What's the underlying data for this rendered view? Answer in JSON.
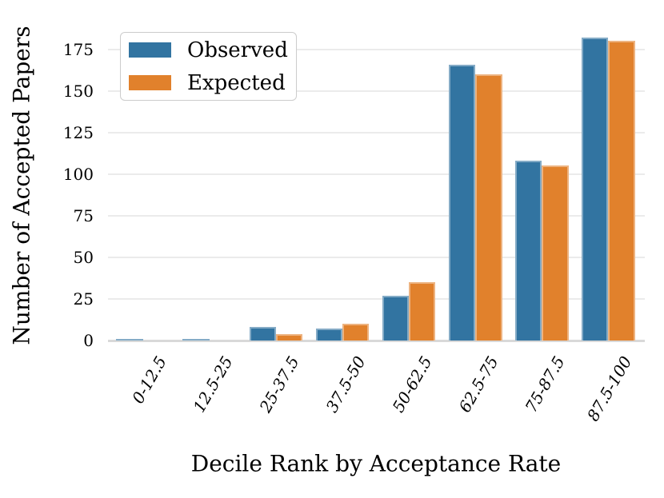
{
  "chart_data": {
    "type": "bar",
    "title": "",
    "xlabel": "Decile Rank by Acceptance Rate",
    "ylabel": "Number of Accepted Papers",
    "categories": [
      "0-12.5",
      "12.5-25",
      "25-37.5",
      "37.5-50",
      "50-62.5",
      "62.5-75",
      "75-87.5",
      "87.5-100"
    ],
    "series": [
      {
        "name": "Observed",
        "color": "#3274a1",
        "edge_color": "#84abc6",
        "values": [
          1,
          1,
          8,
          7,
          27,
          166,
          108,
          182
        ]
      },
      {
        "name": "Expected",
        "color": "#e1812c",
        "edge_color": "#edb380",
        "values": [
          0,
          0,
          4,
          10,
          35,
          160,
          105,
          180
        ]
      }
    ],
    "y_ticks": [
      0,
      25,
      50,
      75,
      100,
      125,
      150,
      175
    ],
    "ylim": [
      0,
      195
    ],
    "grid": "horizontal",
    "grid_color": "#ebebeb",
    "baseline_color": "#d9d9d9",
    "legend_position": "upper-left",
    "legend_border_color": "#cccccc",
    "x_tick_rotation_deg": 60,
    "x_tick_style": "italic",
    "background_color": "#ffffff",
    "text_color": "#000000"
  }
}
